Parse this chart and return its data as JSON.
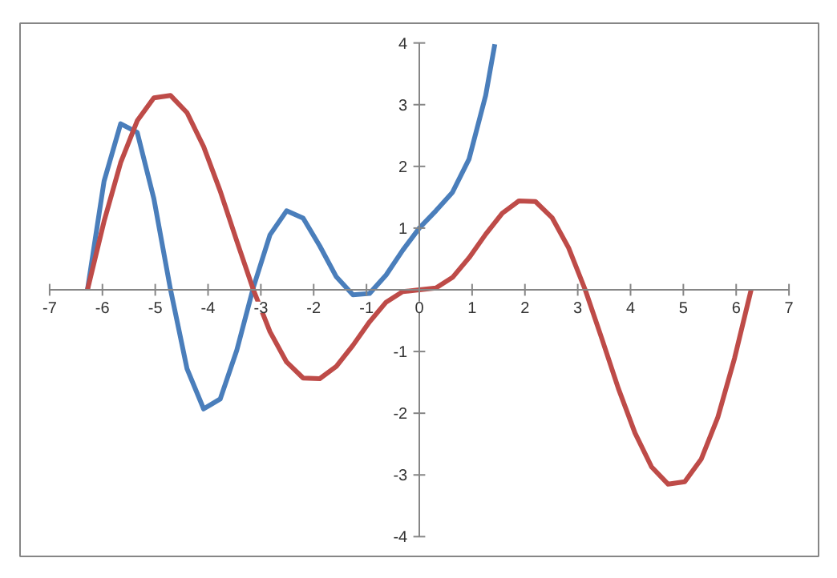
{
  "chart_data": {
    "type": "line",
    "xlim": [
      -7,
      7
    ],
    "ylim": [
      -4,
      4
    ],
    "xticks": [
      -7,
      -6,
      -5,
      -4,
      -3,
      -2,
      -1,
      0,
      1,
      2,
      3,
      4,
      5,
      6,
      7
    ],
    "yticks": [
      -4,
      -3,
      -2,
      -1,
      {
        "value": 0,
        "label": null
      },
      1,
      2,
      3,
      4
    ],
    "line_style": "solid",
    "series": [
      {
        "color": "#4a7ebb",
        "x": [
          -6.2832,
          -5.969,
          -5.6549,
          -5.3407,
          -5.0265,
          -4.7124,
          -4.3982,
          -4.0841,
          -3.7699,
          -3.4558,
          -3.1416,
          -2.8274,
          -2.5133,
          -2.1991,
          -1.885,
          -1.5708,
          -1.2566,
          -0.9425,
          -0.6283,
          -0.3142,
          0,
          0.3142,
          0.6283,
          0.9425,
          1.2566,
          1.43
        ],
        "values": [
          0.0,
          1.76,
          2.69,
          2.55,
          1.48,
          0.01,
          -1.28,
          -1.93,
          -1.77,
          -0.98,
          0.04,
          0.89,
          1.28,
          1.16,
          0.71,
          0.21,
          -0.08,
          -0.06,
          0.24,
          0.64,
          1.0,
          1.28,
          1.58,
          2.12,
          3.15,
          3.98
        ]
      },
      {
        "color": "#be4b48",
        "x": [
          -6.2832,
          -5.969,
          -5.6549,
          -5.3407,
          -5.0265,
          -4.7124,
          -4.3982,
          -4.0841,
          -3.7699,
          -3.4558,
          -3.1416,
          -2.8274,
          -2.5133,
          -2.1991,
          -1.885,
          -1.5708,
          -1.2566,
          -0.9425,
          -0.6283,
          -0.3142,
          0,
          0.3142,
          0.6283,
          0.9425,
          1.2566,
          1.5708,
          1.885,
          2.1991,
          2.5133,
          2.8274,
          3.1416,
          3.4558,
          3.7699,
          4.0841,
          4.3982,
          4.7124,
          5.0265,
          5.3407,
          5.6549,
          5.969,
          6.2832
        ],
        "values": [
          0.0,
          1.11,
          2.06,
          2.74,
          3.11,
          3.15,
          2.87,
          2.32,
          1.6,
          0.79,
          0.0,
          -0.68,
          -1.17,
          -1.43,
          -1.44,
          -1.24,
          -0.9,
          -0.52,
          -0.2,
          -0.03,
          0.0,
          0.03,
          0.2,
          0.52,
          0.9,
          1.24,
          1.44,
          1.43,
          1.17,
          0.68,
          0.0,
          -0.79,
          -1.6,
          -2.32,
          -2.87,
          -3.15,
          -3.11,
          -2.74,
          -2.06,
          -1.11,
          0.0
        ]
      }
    ]
  }
}
